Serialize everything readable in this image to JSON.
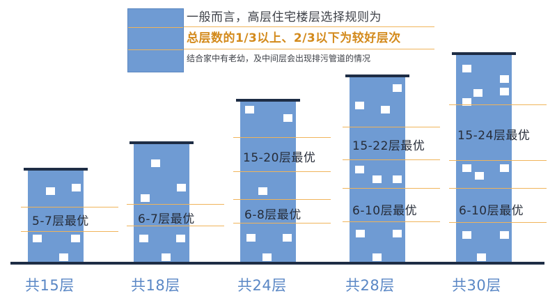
{
  "legend": {
    "line1": "一般而言，高层住宅楼层选择规则为",
    "line2": "总层数的1/3以上、2/3以下为较好层次",
    "line3": "结合家中有老幼，及中间层会出现排污管道的情况"
  },
  "buildings": [
    {
      "total": "共15层",
      "bands": [
        "5-7层最优"
      ]
    },
    {
      "total": "共18层",
      "bands": [
        "6-7层最优"
      ]
    },
    {
      "total": "共24层",
      "bands": [
        "15-20层最优",
        "6-8层最优"
      ]
    },
    {
      "total": "共28层",
      "bands": [
        "15-22层最优",
        "6-10层最优"
      ]
    },
    {
      "total": "共30层",
      "bands": [
        "15-24层最优",
        "6-10层最优"
      ]
    }
  ],
  "colors": {
    "building": "#6f9bd3",
    "roof": "#1e2d45",
    "band_line": "#f0b45a",
    "highlight_text": "#d38a1c",
    "total_text": "#5a87c5"
  }
}
